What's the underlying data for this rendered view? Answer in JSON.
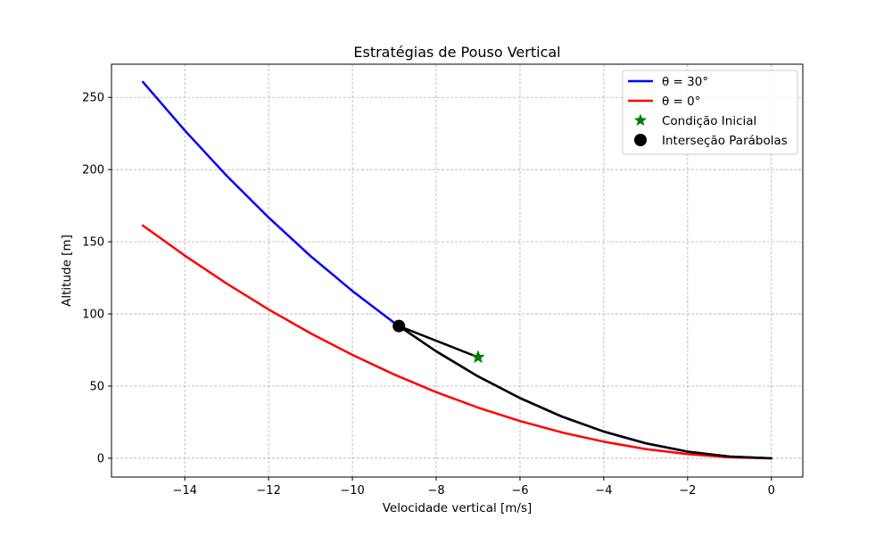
{
  "chart_data": {
    "type": "line",
    "title": "Estratégias de Pouso Vertical",
    "xlabel": "Velocidade vertical [m/s]",
    "ylabel": "Altitude [m]",
    "xlim": [
      -15.75,
      0.75
    ],
    "ylim": [
      -13,
      273
    ],
    "xticks": [
      -14,
      -12,
      -10,
      -8,
      -6,
      -4,
      -2,
      0
    ],
    "yticks": [
      0,
      50,
      100,
      150,
      200,
      250
    ],
    "xtick_labels": [
      "−14",
      "−12",
      "−10",
      "−8",
      "−6",
      "−4",
      "−2",
      "0"
    ],
    "ytick_labels": [
      "0",
      "50",
      "100",
      "150",
      "200",
      "250"
    ],
    "grid": true,
    "legend_position": "top-right",
    "series": [
      {
        "name": "θ = 30°",
        "color": "#0000ff",
        "kind": "line",
        "x": [
          -15,
          -14,
          -13,
          -12,
          -11,
          -10,
          -9,
          -8,
          -7,
          -6,
          -5,
          -4,
          -3,
          -2,
          -1,
          0
        ],
        "y": [
          260.7,
          227.1,
          195.7,
          166.8,
          140.1,
          115.9,
          93.8,
          74.1,
          56.7,
          41.7,
          28.9,
          18.5,
          10.4,
          4.6,
          1.2,
          0
        ]
      },
      {
        "name": "θ = 0°",
        "color": "#ff0000",
        "kind": "line",
        "x": [
          -15,
          -14,
          -13,
          -12,
          -11,
          -10,
          -9,
          -8,
          -7,
          -6,
          -5,
          -4,
          -3,
          -2,
          -1,
          0
        ],
        "y": [
          161.2,
          140.4,
          121.0,
          103.1,
          86.6,
          71.6,
          58.0,
          45.8,
          35.1,
          25.8,
          17.9,
          11.5,
          6.4,
          2.9,
          0.7,
          0
        ]
      },
      {
        "name": "",
        "color": "#000000",
        "kind": "line",
        "x": [
          -7,
          -8.89,
          -8,
          -7,
          -6,
          -5,
          -4,
          -3,
          -2,
          -1,
          0
        ],
        "y": [
          70,
          91.6,
          74.1,
          56.7,
          41.7,
          28.9,
          18.5,
          10.4,
          4.6,
          1.2,
          0
        ]
      },
      {
        "name": "Condição Inicial",
        "color": "#008000",
        "kind": "star",
        "x": [
          -7
        ],
        "y": [
          70
        ]
      },
      {
        "name": "Interseção Parábolas",
        "color": "#000000",
        "kind": "dot",
        "x": [
          -8.89
        ],
        "y": [
          91.6
        ]
      }
    ]
  }
}
